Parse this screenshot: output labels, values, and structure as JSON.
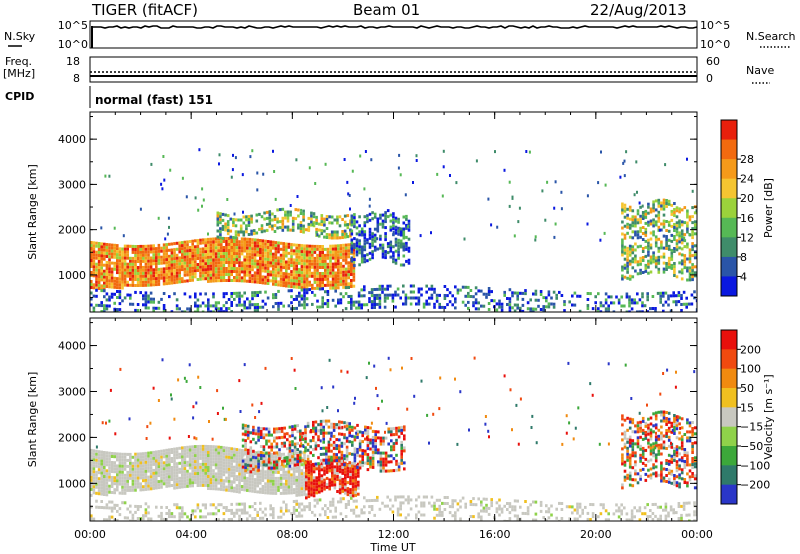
{
  "header": {
    "title": "TIGER (fitACF)",
    "beam": "Beam 01",
    "date": "22/Aug/2013"
  },
  "strips": {
    "nsky": {
      "label": "N.Sky",
      "ticks": [
        "10^5",
        "10^0"
      ]
    },
    "nsearch": {
      "label": "N.Search",
      "ticks": [
        "10^5",
        "10^0"
      ]
    },
    "freq": {
      "label_line1": "Freq.",
      "label_line2": "[MHz]",
      "ticks": [
        "18",
        "8"
      ]
    },
    "nave": {
      "label": "Nave",
      "ticks": [
        "60",
        "0"
      ]
    },
    "cpid": {
      "label": "CPID",
      "value": "normal (fast) 151"
    }
  },
  "chart_data": [
    {
      "type": "heatmap",
      "title": "",
      "xlabel": "Time UT",
      "ylabel": "Slant Range [km]",
      "x_ticks": [
        "00:00",
        "04:00",
        "08:00",
        "12:00",
        "16:00",
        "20:00",
        "00:00"
      ],
      "y_ticks": [
        1000,
        2000,
        3000,
        4000
      ],
      "xlim_hours": [
        0,
        24
      ],
      "ylim": [
        180,
        4600
      ],
      "colorbar": {
        "label": "Power [dB]",
        "ticks": [
          4,
          8,
          12,
          16,
          20,
          24,
          28
        ],
        "colors": [
          "#0a18e0",
          "#2a55a8",
          "#3f8c6a",
          "#56b855",
          "#9bd23b",
          "#f5c531",
          "#f59a1a",
          "#f26a0f",
          "#e8200c"
        ]
      },
      "echo_regions": [
        {
          "t_start": 0.0,
          "t_end": 10.4,
          "r_min": 800,
          "r_max": 1750,
          "level": "high"
        },
        {
          "t_start": 5.0,
          "t_end": 10.3,
          "r_min": 1900,
          "r_max": 2400,
          "level": "mid"
        },
        {
          "t_start": 10.3,
          "t_end": 12.6,
          "r_min": 1300,
          "r_max": 2400,
          "level": "low"
        },
        {
          "t_start": 21.0,
          "t_end": 24.0,
          "r_min": 1000,
          "r_max": 2600,
          "level": "mid"
        },
        {
          "t_start": 0.0,
          "t_end": 24.0,
          "r_min": 200,
          "r_max": 700,
          "level": "low"
        }
      ]
    },
    {
      "type": "heatmap",
      "title": "",
      "xlabel": "Time UT",
      "ylabel": "Slant Range [km]",
      "x_ticks": [
        "00:00",
        "04:00",
        "08:00",
        "12:00",
        "16:00",
        "20:00",
        "00:00"
      ],
      "y_ticks": [
        1000,
        2000,
        3000,
        4000
      ],
      "xlim_hours": [
        0,
        24
      ],
      "ylim": [
        180,
        4600
      ],
      "colorbar": {
        "label": "Velocity [m s⁻¹]",
        "ticks": [
          200,
          100,
          50,
          15,
          -15,
          -50,
          -100,
          -200
        ],
        "colors": [
          "#2a36c8",
          "#2f7a6a",
          "#3ca83a",
          "#8fd24a",
          "#c8c8c0",
          "#f0c020",
          "#f08a10",
          "#f04a10",
          "#e8100c"
        ]
      },
      "echo_regions": [
        {
          "t_start": 0.0,
          "t_end": 8.5,
          "r_min": 850,
          "r_max": 1750,
          "level": "ground"
        },
        {
          "t_start": 8.5,
          "t_end": 10.6,
          "r_min": 800,
          "r_max": 1500,
          "level": "negative"
        },
        {
          "t_start": 6.0,
          "t_end": 12.4,
          "r_min": 1350,
          "r_max": 2300,
          "level": "mixed"
        },
        {
          "t_start": 21.0,
          "t_end": 24.0,
          "r_min": 1000,
          "r_max": 2500,
          "level": "mixed"
        },
        {
          "t_start": 0.0,
          "t_end": 24.0,
          "r_min": 200,
          "r_max": 650,
          "level": "ground"
        }
      ]
    }
  ]
}
